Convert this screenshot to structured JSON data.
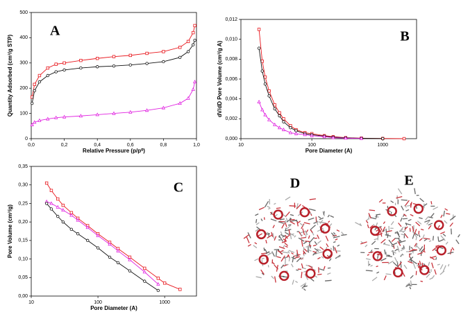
{
  "chart_data": [
    {
      "type": "line",
      "annotation": "A",
      "xlabel": "Relative Pressure (p/p⁰)",
      "ylabel": "Quantity Adsorbed (cm³/g STP)",
      "x": [
        0.005,
        0.02,
        0.05,
        0.1,
        0.15,
        0.2,
        0.3,
        0.4,
        0.5,
        0.6,
        0.7,
        0.8,
        0.9,
        0.95,
        0.98,
        0.99
      ],
      "series": [
        {
          "color": "#e8151b",
          "marker": "square",
          "values": [
            165,
            215,
            250,
            280,
            295,
            300,
            310,
            318,
            325,
            330,
            338,
            345,
            362,
            385,
            420,
            448
          ]
        },
        {
          "color": "#111111",
          "marker": "circle",
          "values": [
            140,
            190,
            225,
            250,
            265,
            272,
            280,
            285,
            288,
            292,
            298,
            305,
            322,
            345,
            372,
            390
          ]
        },
        {
          "color": "#e020e0",
          "marker": "triangle",
          "values": [
            55,
            65,
            72,
            78,
            83,
            86,
            90,
            95,
            100,
            105,
            112,
            122,
            140,
            160,
            195,
            225
          ]
        }
      ],
      "xlim": [
        0,
        1
      ],
      "xticks": [
        {
          "value": 0,
          "label": "0,0"
        },
        {
          "value": 0.2,
          "label": "0,2"
        },
        {
          "value": 0.4,
          "label": "0,4"
        },
        {
          "value": 0.6,
          "label": "0,6"
        },
        {
          "value": 0.8,
          "label": "0,8"
        },
        {
          "value": 1,
          "label": "1,0"
        }
      ],
      "ylim": [
        0,
        500
      ],
      "yticks": [
        0,
        100,
        200,
        300,
        400,
        500
      ],
      "xlog": false
    },
    {
      "type": "line",
      "annotation": "B",
      "xlabel": "Pore Diameter (A)",
      "ylabel": "dV/dD Pore Volume (cm³/g A)",
      "x": [
        18,
        20,
        22,
        25,
        30,
        35,
        40,
        50,
        60,
        80,
        100,
        150,
        200,
        300,
        500,
        1000,
        2000
      ],
      "series": [
        {
          "color": "#e8151b",
          "marker": "square",
          "values": [
            0.011,
            0.0078,
            0.0062,
            0.0048,
            0.0034,
            0.0026,
            0.002,
            0.0013,
            0.0009,
            0.0006,
            0.0005,
            0.0003,
            0.0002,
            0.0001,
            5e-05,
            2e-05,
            0
          ]
        },
        {
          "color": "#111111",
          "marker": "circle",
          "values": [
            0.0091,
            0.0068,
            0.0055,
            0.0043,
            0.003,
            0.0023,
            0.0017,
            0.0011,
            0.0008,
            0.0005,
            0.0004,
            0.00025,
            0.00015,
            8e-05,
            4e-05,
            1e-05,
            null
          ]
        },
        {
          "color": "#e020e0",
          "marker": "triangle",
          "values": [
            0.0037,
            0.0029,
            0.0024,
            0.0019,
            0.0014,
            0.0011,
            0.0009,
            0.0006,
            0.0005,
            0.0004,
            0.0003,
            0.0002,
            0.0001,
            5e-05,
            2e-05,
            null,
            null
          ]
        }
      ],
      "xlim": [
        10,
        3000
      ],
      "xticks": [
        10,
        100,
        1000
      ],
      "xlog": true,
      "ylim": [
        0,
        0.012
      ],
      "yticks": [
        {
          "value": 0,
          "label": "0,000"
        },
        {
          "value": 0.002,
          "label": "0,002"
        },
        {
          "value": 0.004,
          "label": "0,004"
        },
        {
          "value": 0.006,
          "label": "0,006"
        },
        {
          "value": 0.008,
          "label": "0,008"
        },
        {
          "value": 0.01,
          "label": "0,010"
        },
        {
          "value": 0.012,
          "label": "0,012"
        }
      ]
    },
    {
      "type": "line",
      "annotation": "C",
      "xlabel": "Pore Diameter (A)",
      "ylabel": "Pore Volume (cm³/g)",
      "x": [
        17,
        20,
        25,
        30,
        40,
        50,
        70,
        100,
        150,
        200,
        300,
        500,
        800,
        1000,
        1700
      ],
      "series": [
        {
          "color": "#e8151b",
          "marker": "square",
          "values": [
            0.305,
            0.285,
            0.262,
            0.245,
            0.225,
            0.21,
            0.19,
            0.168,
            0.145,
            0.128,
            0.105,
            0.075,
            0.048,
            0.035,
            0.018
          ]
        },
        {
          "color": "#e020e0",
          "marker": "triangle",
          "values": [
            0.255,
            0.25,
            0.24,
            0.232,
            0.218,
            0.205,
            0.185,
            0.163,
            0.14,
            0.122,
            0.098,
            0.065,
            0.032,
            null,
            null
          ]
        },
        {
          "color": "#111111",
          "marker": "circle",
          "values": [
            0.25,
            0.235,
            0.215,
            0.2,
            0.18,
            0.168,
            0.15,
            0.13,
            0.105,
            0.09,
            0.068,
            0.04,
            0.015,
            null,
            null
          ]
        }
      ],
      "xlim": [
        10,
        3000
      ],
      "xticks": [
        10,
        100,
        1000
      ],
      "xlog": true,
      "ylim": [
        0,
        0.35
      ],
      "yticks": [
        {
          "value": 0,
          "label": "0,00"
        },
        {
          "value": 0.05,
          "label": "0,05"
        },
        {
          "value": 0.1,
          "label": "0,10"
        },
        {
          "value": 0.15,
          "label": "0,15"
        },
        {
          "value": 0.2,
          "label": "0,20"
        },
        {
          "value": 0.25,
          "label": "0,25"
        },
        {
          "value": 0.3,
          "label": "0,30"
        },
        {
          "value": 0.35,
          "label": "0,35"
        }
      ]
    }
  ],
  "images": [
    {
      "label": "D"
    },
    {
      "label": "E"
    }
  ]
}
